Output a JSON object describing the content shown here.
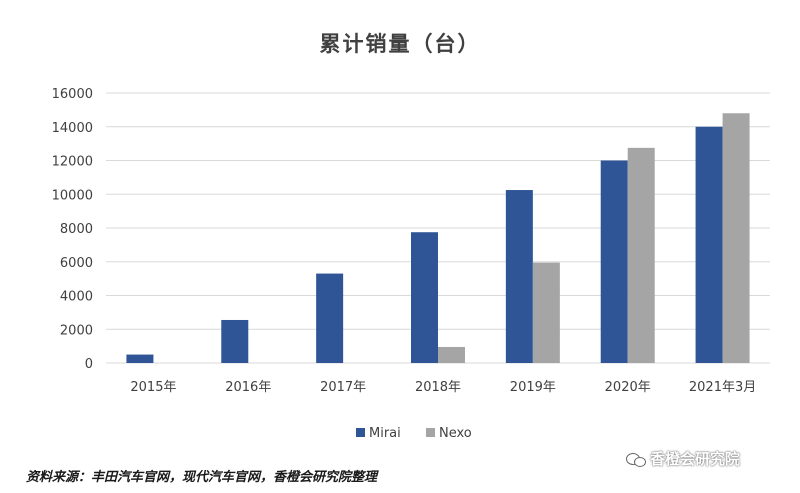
{
  "chart_data": {
    "type": "bar",
    "title": "累计销量（台）",
    "categories": [
      "2015年",
      "2016年",
      "2017年",
      "2018年",
      "2019年",
      "2020年",
      "2021年3月"
    ],
    "series": [
      {
        "name": "Mirai",
        "color": "#2f5597",
        "values": [
          500,
          2550,
          5300,
          7750,
          10250,
          12000,
          14000
        ]
      },
      {
        "name": "Nexo",
        "color": "#a5a5a5",
        "values": [
          null,
          null,
          null,
          950,
          5950,
          12750,
          14800
        ]
      }
    ],
    "ylim": [
      0,
      16000
    ],
    "yticks": [
      0,
      2000,
      4000,
      6000,
      8000,
      10000,
      12000,
      14000,
      16000
    ],
    "grid": true,
    "legend_position": "bottom-center"
  },
  "source": "资料来源：丰田汽车官网，现代汽车官网，香橙会研究院整理",
  "watermark": "香橙会研究院"
}
